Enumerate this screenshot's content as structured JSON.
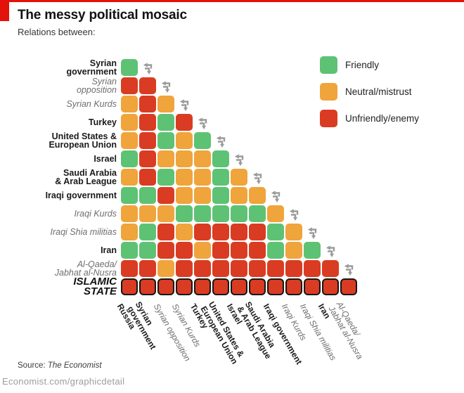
{
  "header": {
    "title": "The messy political mosaic",
    "subtitle": "Relations between:"
  },
  "legend": {
    "items": [
      {
        "label": "Friendly",
        "key": "F"
      },
      {
        "label": "Neutral/mistrust",
        "key": "N"
      },
      {
        "label": "Unfriendly/enemy",
        "key": "U"
      }
    ]
  },
  "colors": {
    "F": "#5ec274",
    "N": "#f0a43c",
    "U": "#d93c22",
    "economist_red": "#e3120b",
    "arrow_gray": "#9b9b9b",
    "outline_black": "#161616"
  },
  "chart_data": {
    "type": "heatmap",
    "title": "The messy political mosaic",
    "subtitle": "Relations between:",
    "legend": [
      "Friendly",
      "Neutral/mistrust",
      "Unfriendly/enemy"
    ],
    "value_key": {
      "F": "Friendly",
      "N": "Neutral/mistrust",
      "U": "Unfriendly/enemy"
    },
    "layout": "lower-triangular matrix, row i vs columns 0..i, grey swap-arrows icon after each row except the last",
    "columns": [
      {
        "label": "Russia",
        "style": "bold"
      },
      {
        "label": "Syrian\ngovernment",
        "style": "bold"
      },
      {
        "label": "Syrian opposition",
        "style": "italic"
      },
      {
        "label": "Syrian Kurds",
        "style": "italic"
      },
      {
        "label": "Turkey",
        "style": "bold"
      },
      {
        "label": "United States &\nEuropean Union",
        "style": "bold"
      },
      {
        "label": "Israel",
        "style": "bold"
      },
      {
        "label": "Saudi Arabia\n& Arab League",
        "style": "bold"
      },
      {
        "label": "Iraqi government",
        "style": "bold"
      },
      {
        "label": "Iraqi Kurds",
        "style": "italic"
      },
      {
        "label": "Iraqi Shia militias",
        "style": "italic"
      },
      {
        "label": "Iran",
        "style": "bold"
      },
      {
        "label": "Al-Qaeda/\nJabhat al-Nusra",
        "style": "italic"
      }
    ],
    "rows": [
      {
        "label": "Syrian\ngovernment",
        "style": "bold",
        "relations": [
          "F"
        ]
      },
      {
        "label": "Syrian\nopposition",
        "style": "italic",
        "relations": [
          "U",
          "U"
        ]
      },
      {
        "label": "Syrian Kurds",
        "style": "italic",
        "relations": [
          "N",
          "U",
          "N"
        ]
      },
      {
        "label": "Turkey",
        "style": "bold",
        "relations": [
          "N",
          "U",
          "F",
          "U"
        ]
      },
      {
        "label": "United States &\nEuropean Union",
        "style": "bold",
        "relations": [
          "N",
          "U",
          "F",
          "N",
          "F"
        ]
      },
      {
        "label": "Israel",
        "style": "bold",
        "relations": [
          "F",
          "U",
          "N",
          "N",
          "N",
          "F"
        ]
      },
      {
        "label": "Saudi Arabia\n& Arab League",
        "style": "bold",
        "relations": [
          "N",
          "U",
          "F",
          "N",
          "N",
          "F",
          "N"
        ]
      },
      {
        "label": "Iraqi government",
        "style": "bold",
        "relations": [
          "F",
          "F",
          "U",
          "N",
          "N",
          "F",
          "N",
          "N"
        ]
      },
      {
        "label": "Iraqi Kurds",
        "style": "italic",
        "relations": [
          "N",
          "N",
          "N",
          "F",
          "F",
          "F",
          "F",
          "F",
          "N"
        ]
      },
      {
        "label": "Iraqi Shia militias",
        "style": "italic",
        "relations": [
          "N",
          "F",
          "U",
          "N",
          "U",
          "U",
          "U",
          "U",
          "F",
          "N"
        ]
      },
      {
        "label": "Iran",
        "style": "bold",
        "relations": [
          "F",
          "F",
          "U",
          "U",
          "N",
          "U",
          "U",
          "U",
          "F",
          "N",
          "F"
        ]
      },
      {
        "label": "Al-Qaeda/\nJabhat al-Nusra",
        "style": "italic",
        "relations": [
          "U",
          "U",
          "N",
          "U",
          "U",
          "U",
          "U",
          "U",
          "U",
          "U",
          "U",
          "U"
        ]
      },
      {
        "label": "ISLAMIC\nSTATE",
        "style": "caps",
        "outlined": true,
        "relations": [
          "U",
          "U",
          "U",
          "U",
          "U",
          "U",
          "U",
          "U",
          "U",
          "U",
          "U",
          "U",
          "U"
        ]
      }
    ]
  },
  "footer": {
    "source_prefix": "Source: ",
    "source_name": "The Economist",
    "url": "Economist.com/graphicdetail"
  }
}
